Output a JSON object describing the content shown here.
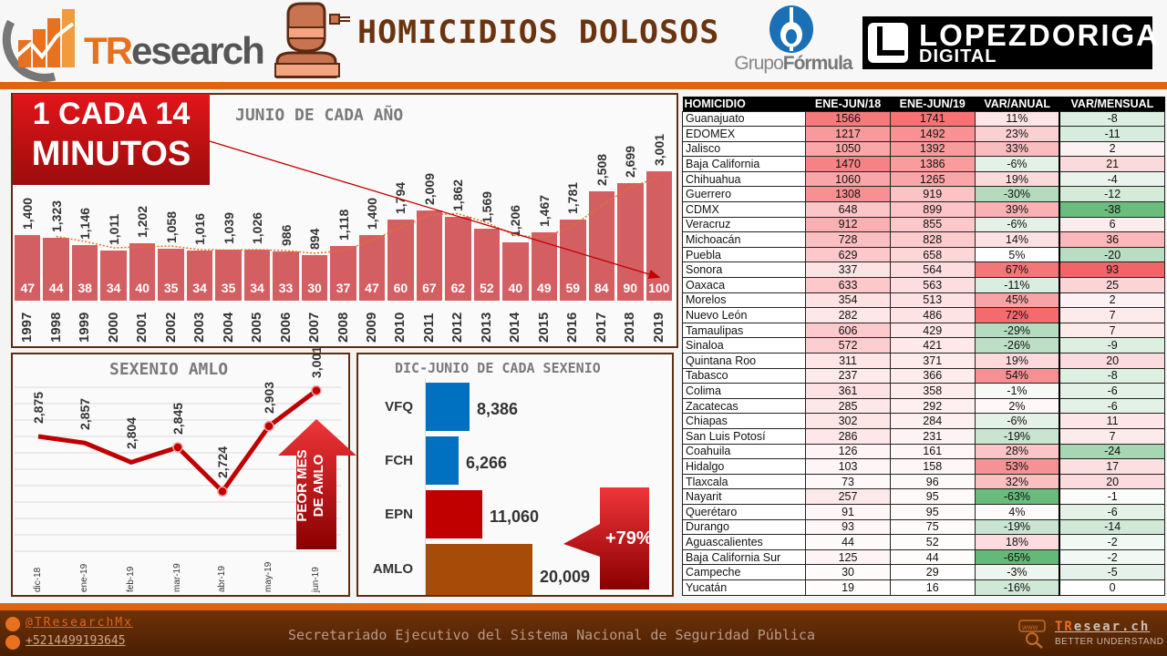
{
  "header": {
    "logo_left_part1": "TR",
    "logo_left_part2": "esearch",
    "title": "HOMICIDIOS DOLOSOS",
    "partner1_prefix": "Grupo",
    "partner1_suffix": "Fórmula",
    "partner2_line1": "LOPEZDORIGA",
    "partner2_line2": "DIGITAL"
  },
  "callout": {
    "line1": "1 CADA 14",
    "line2": "MINUTOS"
  },
  "line_callout": {
    "text_line1": "PEOR MES",
    "text_line2": "DE AMLO"
  },
  "bar_callout": {
    "text": "+79%"
  },
  "chart_data": [
    {
      "type": "bar",
      "title": "JUNIO DE CADA AÑO",
      "categories": [
        "1997",
        "1998",
        "1999",
        "2000",
        "2001",
        "2002",
        "2003",
        "2004",
        "2005",
        "2006",
        "2007",
        "2008",
        "2009",
        "2010",
        "2011",
        "2012",
        "2013",
        "2014",
        "2015",
        "2016",
        "2017",
        "2018",
        "2019"
      ],
      "values": [
        1400,
        1323,
        1146,
        1011,
        1202,
        1058,
        1016,
        1039,
        1026,
        986,
        894,
        1118,
        1400,
        1794,
        2009,
        1862,
        1569,
        1206,
        1467,
        1781,
        2508,
        2699,
        3001
      ],
      "value_labels": [
        "1,400",
        "1,323",
        "1,146",
        "1,011",
        "1,202",
        "1,058",
        "1,016",
        "1,039",
        "1,026",
        "986",
        "894",
        "1,118",
        "1,400",
        "1,794",
        "2,009",
        "1,862",
        "1,569",
        "1,206",
        "1,467",
        "1,781",
        "2,508",
        "2,699",
        "3,001"
      ],
      "index_labels": [
        47,
        44,
        38,
        34,
        40,
        35,
        34,
        35,
        34,
        33,
        30,
        37,
        47,
        60,
        67,
        62,
        52,
        40,
        49,
        59,
        84,
        90,
        100
      ],
      "trendline": "dotted orange moving average",
      "bar_color": "#d45f63",
      "xlabel": "",
      "ylabel": "",
      "grid": false
    },
    {
      "type": "line",
      "title": "SEXENIO AMLO",
      "categories": [
        "dic-18",
        "ene-19",
        "feb-19",
        "mar-19",
        "abr-19",
        "may-19",
        "jun-19"
      ],
      "values": [
        2875,
        2857,
        2804,
        2845,
        2724,
        2903,
        3001
      ],
      "value_labels": [
        "2,875",
        "2,857",
        "2,804",
        "2,845",
        "2,724",
        "2,903",
        "3,001"
      ],
      "line_color": "#c00000",
      "grid": true,
      "ylim": [
        2560,
        3060
      ]
    },
    {
      "type": "bar",
      "orientation": "horizontal",
      "title": "DIC-JUNIO DE CADA SEXENIO",
      "categories": [
        "VFQ",
        "FCH",
        "EPN",
        "AMLO"
      ],
      "values": [
        8386,
        6266,
        11060,
        20009
      ],
      "value_labels": [
        "8,386",
        "6,266",
        "11,060",
        "20,009"
      ],
      "colors": [
        "#0070c0",
        "#0070c0",
        "#c00000",
        "#a64b08"
      ]
    }
  ],
  "table": {
    "headers": [
      "HOMICIDIO",
      "ENE-JUN/18",
      "ENE-JUN/19",
      "VAR/ANUAL",
      "VAR/MENSUAL"
    ],
    "rows": [
      {
        "state": "Guanajuato",
        "y18": "1566",
        "y19": "1741",
        "anual": "11%",
        "mensual": "-8",
        "c18": "#f47a7c",
        "c19": "#f77275",
        "ca": "#fde4e6",
        "cm": "#dcefe1"
      },
      {
        "state": "EDOMEX",
        "y18": "1217",
        "y19": "1492",
        "anual": "23%",
        "mensual": "-11",
        "c18": "#f8999b",
        "c19": "#f99194",
        "ca": "#fbd0d2",
        "cm": "#d6ecdc"
      },
      {
        "state": "Jalisco",
        "y18": "1050",
        "y19": "1392",
        "anual": "33%",
        "mensual": "2",
        "c18": "#faa7a9",
        "c19": "#f99b9e",
        "ca": "#fabcbe",
        "cm": "#fdf2f3"
      },
      {
        "state": "Baja California",
        "y18": "1470",
        "y19": "1386",
        "anual": "-6%",
        "mensual": "21",
        "c18": "#f58386",
        "c19": "#f99c9e",
        "ca": "#e3f1e6",
        "cm": "#fbdadb"
      },
      {
        "state": "Chihuahua",
        "y18": "1060",
        "y19": "1265",
        "anual": "19%",
        "mensual": "-4",
        "c18": "#faa6a8",
        "c19": "#faa6a8",
        "ca": "#fcdadc",
        "cm": "#e9f5ec"
      },
      {
        "state": "Guerrero",
        "y18": "1308",
        "y19": "919",
        "anual": "-30%",
        "mensual": "-12",
        "c18": "#f79093",
        "c19": "#fcc3c5",
        "ca": "#b3dbbc",
        "cm": "#d5ebda"
      },
      {
        "state": "CDMX",
        "y18": "648",
        "y19": "899",
        "anual": "39%",
        "mensual": "-38",
        "c18": "#fcc6c8",
        "c19": "#fcc4c6",
        "ca": "#f9b1b3",
        "cm": "#6bbd7e"
      },
      {
        "state": "Veracruz",
        "y18": "912",
        "y19": "855",
        "anual": "-6%",
        "mensual": "6",
        "c18": "#fab0b2",
        "c19": "#fcc8ca",
        "ca": "#e3f1e6",
        "cm": "#fdecee"
      },
      {
        "state": "Michoacán",
        "y18": "728",
        "y19": "828",
        "anual": "14%",
        "mensual": "36",
        "c18": "#fbbfc1",
        "c19": "#fccbcd",
        "ca": "#fde0e2",
        "cm": "#fab8ba"
      },
      {
        "state": "Puebla",
        "y18": "629",
        "y19": "658",
        "anual": "5%",
        "mensual": "-20",
        "c18": "#fcc8ca",
        "c19": "#fdd6d8",
        "ca": "#ffffff",
        "cm": "#b8ddc1"
      },
      {
        "state": "Sonora",
        "y18": "337",
        "y19": "564",
        "anual": "67%",
        "mensual": "93",
        "c18": "#fee3e4",
        "c19": "#fddddf",
        "ca": "#f57679",
        "cm": "#f26468"
      },
      {
        "state": "Oaxaca",
        "y18": "633",
        "y19": "563",
        "anual": "-11%",
        "mensual": "25",
        "c18": "#fcc8ca",
        "c19": "#fddddf",
        "ca": "#d9ede0",
        "cm": "#fbd4d6"
      },
      {
        "state": "Morelos",
        "y18": "354",
        "y19": "513",
        "anual": "45%",
        "mensual": "2",
        "c18": "#fee2e3",
        "c19": "#fde1e3",
        "ca": "#f8a3a6",
        "cm": "#fdf2f3"
      },
      {
        "state": "Nuevo León",
        "y18": "282",
        "y19": "486",
        "anual": "72%",
        "mensual": "7",
        "c18": "#fee7e8",
        "c19": "#fee3e4",
        "ca": "#f46b6f",
        "cm": "#fdebec"
      },
      {
        "state": "Tamaulipas",
        "y18": "606",
        "y19": "429",
        "anual": "-29%",
        "mensual": "7",
        "c18": "#fccacc",
        "c19": "#fee7e8",
        "ca": "#b5dcbf",
        "cm": "#fdebec"
      },
      {
        "state": "Sinaloa",
        "y18": "572",
        "y19": "421",
        "anual": "-26%",
        "mensual": "-9",
        "c18": "#fdcdcf",
        "c19": "#fee8e9",
        "ca": "#bddfc6",
        "cm": "#dcefe1"
      },
      {
        "state": "Quintana Roo",
        "y18": "311",
        "y19": "371",
        "anual": "19%",
        "mensual": "20",
        "c18": "#fee5e6",
        "c19": "#feebec",
        "ca": "#fcdadc",
        "cm": "#fbdbdd"
      },
      {
        "state": "Tabasco",
        "y18": "237",
        "y19": "366",
        "anual": "54%",
        "mensual": "-8",
        "c18": "#feeaeb",
        "c19": "#feebec",
        "ca": "#f69093",
        "cm": "#dcefe1"
      },
      {
        "state": "Colima",
        "y18": "361",
        "y19": "358",
        "anual": "-1%",
        "mensual": "-6",
        "c18": "#fee1e2",
        "c19": "#feeced",
        "ca": "#f5faf6",
        "cm": "#e3f1e6"
      },
      {
        "state": "Zacatecas",
        "y18": "285",
        "y19": "292",
        "anual": "2%",
        "mensual": "-6",
        "c18": "#fee7e8",
        "c19": "#fef0f1",
        "ca": "#fef8f8",
        "cm": "#e3f1e6"
      },
      {
        "state": "Chiapas",
        "y18": "302",
        "y19": "284",
        "anual": "-6%",
        "mensual": "11",
        "c18": "#fee6e7",
        "c19": "#fef0f1",
        "ca": "#e3f1e6",
        "cm": "#fde6e7"
      },
      {
        "state": "San Luis Potosí",
        "y18": "286",
        "y19": "231",
        "anual": "-19%",
        "mensual": "7",
        "c18": "#fee7e8",
        "c19": "#fef3f4",
        "ca": "#c9e4d0",
        "cm": "#fdebec"
      },
      {
        "state": "Coahuila",
        "y18": "126",
        "y19": "161",
        "anual": "28%",
        "mensual": "-24",
        "c18": "#fff4f5",
        "c19": "#fff6f7",
        "ca": "#fbc4c6",
        "cm": "#a7d6b2"
      },
      {
        "state": "Hidalgo",
        "y18": "103",
        "y19": "158",
        "anual": "53%",
        "mensual": "17",
        "c18": "#fff5f6",
        "c19": "#fff6f7",
        "ca": "#f69295",
        "cm": "#fcdfe1"
      },
      {
        "state": "Tlaxcala",
        "y18": "73",
        "y19": "96",
        "anual": "32%",
        "mensual": "20",
        "c18": "#fff8f8",
        "c19": "#fffafa",
        "ca": "#fabfc1",
        "cm": "#fbdbdd"
      },
      {
        "state": "Nayarit",
        "y18": "257",
        "y19": "95",
        "anual": "-63%",
        "mensual": "-1",
        "c18": "#fee9ea",
        "c19": "#fffafa",
        "ca": "#69bc7c",
        "cm": "#fafcfa"
      },
      {
        "state": "Querétaro",
        "y18": "91",
        "y19": "95",
        "anual": "4%",
        "mensual": "-6",
        "c18": "#fff6f7",
        "c19": "#fffafa",
        "ca": "#fffafa",
        "cm": "#e3f1e6"
      },
      {
        "state": "Durango",
        "y18": "93",
        "y19": "75",
        "anual": "-19%",
        "mensual": "-14",
        "c18": "#fff6f7",
        "c19": "#fffbfb",
        "ca": "#c9e4d0",
        "cm": "#d0e9d6"
      },
      {
        "state": "Aguascalientes",
        "y18": "44",
        "y19": "52",
        "anual": "18%",
        "mensual": "-2",
        "c18": "#fffafa",
        "c19": "#fffcfc",
        "ca": "#fcdcde",
        "cm": "#f2f8f3"
      },
      {
        "state": "Baja California Sur",
        "y18": "125",
        "y19": "44",
        "anual": "-65%",
        "mensual": "-2",
        "c18": "#fff4f5",
        "c19": "#fffcfc",
        "ca": "#63b977",
        "cm": "#f2f8f3"
      },
      {
        "state": "Campeche",
        "y18": "30",
        "y19": "29",
        "anual": "-3%",
        "mensual": "-5",
        "c18": "#fffbfb",
        "c19": "#fffdfd",
        "ca": "#ecf5ee",
        "cm": "#e6f2e9"
      },
      {
        "state": "Yucatán",
        "y18": "19",
        "y19": "16",
        "anual": "-16%",
        "mensual": "0",
        "c18": "#fffcfc",
        "c19": "#ffffff",
        "ca": "#d0e9d6",
        "cm": "#ffffff"
      }
    ]
  },
  "footer": {
    "twitter": "@TResearchMx",
    "phone": "+5214499193645",
    "source": "Secretariado Ejecutivo del Sistema Nacional de Seguridad Pública",
    "site_prefix": "TR",
    "site_suffix": "esear.ch",
    "tagline": "BETTER UNDERSTAND"
  }
}
